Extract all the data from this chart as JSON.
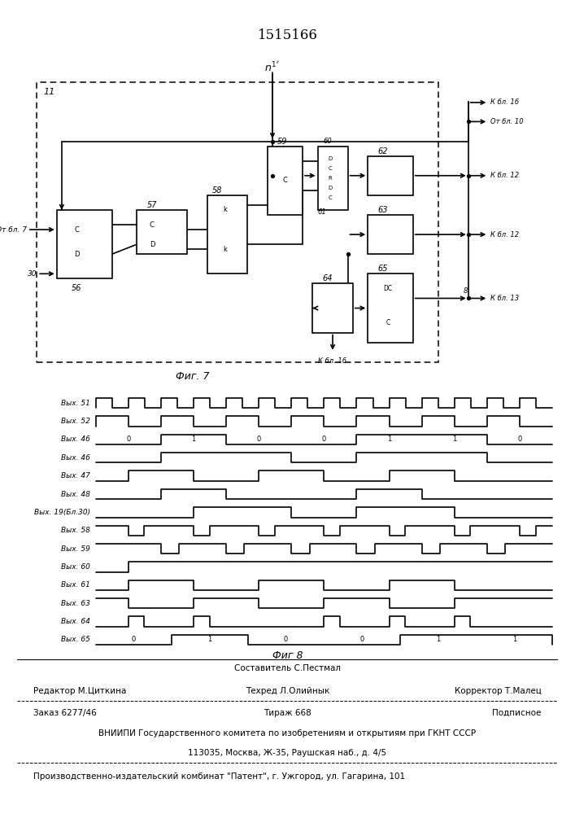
{
  "title": "1515166",
  "fig7_label": "Фиг. 7",
  "fig8_label": "Фиг 8",
  "bg": "#ffffff",
  "footer_editor": "Редактор М.Циткина",
  "footer_composer": "Составитель С.Пестмал",
  "footer_techred": "Техред Л.Олийнык",
  "footer_corrector": "Корректор Т.Малец",
  "footer_order": "Заказ 6277/46",
  "footer_tirazh": "Тираж 668",
  "footer_podpis": "Подписное",
  "footer_vniip1": "ВНИИПИ Государственного комитета по изобретениям и открытиям при ГКНТ СССР",
  "footer_vniip2": "113035, Москва, Ж-35, Раушская наб., д. 4/5",
  "footer_patent": "Производственно-издательский комбинат \"Патент\", г. Ужгород, ул. Гагарина, 101",
  "signal_labels": [
    "Вых. 51",
    "Вых. 52",
    "Вых. 46",
    "Вых. 46",
    "Вых. 47",
    "Вых. 48",
    "Вых. 19(Бл.30)",
    "Вых. 58",
    "Вых. 59",
    "Вых. 60",
    "Вых. 61",
    "Вых. 63",
    "Вых. 64",
    "Вых. 65"
  ],
  "circ_labels": {
    "n1": "$n^{1^{\\prime\\prime}}$",
    "blk11": "11",
    "blk56": "56",
    "blk57": "57",
    "blk58": "58",
    "blk59": "59",
    "blk60": "60",
    "blk61": "61",
    "blk62": "62",
    "blk63": "63",
    "blk64": "64",
    "blk65": "65",
    "from7": "От бл. 7",
    "in30": "30",
    "kbl16_top": "К бл. 16",
    "otbl10": "От бл. 10",
    "kbl12_top": "К бл. 12",
    "kbl12_mid": "К бл. 12",
    "kbl13": "К бл. 13",
    "num8": "8",
    "kbl16_bot": "К бл. 16"
  }
}
